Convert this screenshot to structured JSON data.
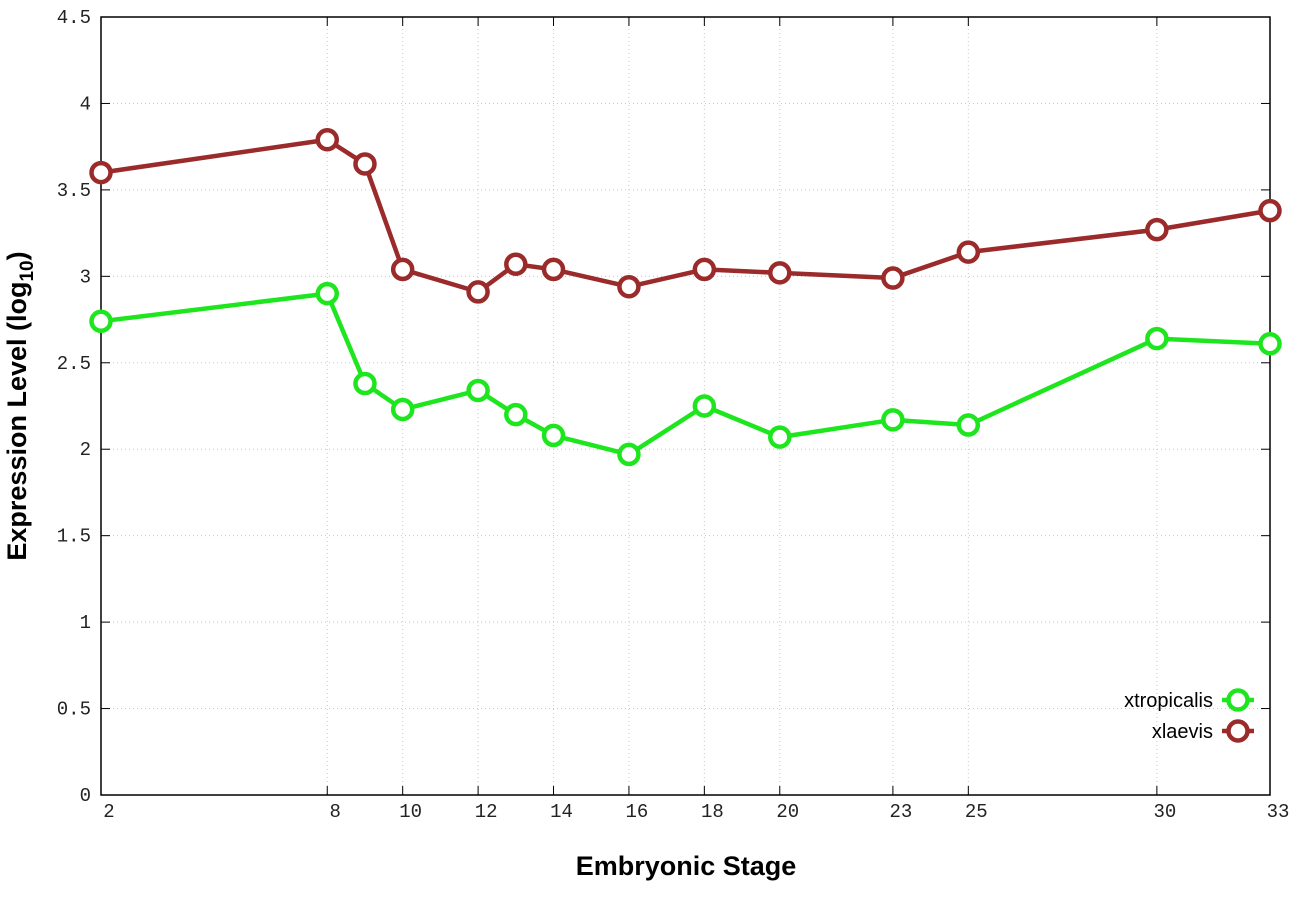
{
  "chart_data": {
    "type": "line",
    "x_label": "Embryonic Stage",
    "y_label_parts": [
      "Expression Level (log",
      "10",
      ")"
    ],
    "x": [
      2,
      8,
      9,
      10,
      12,
      13,
      14,
      16,
      18,
      20,
      23,
      25,
      30,
      33
    ],
    "series": [
      {
        "name": "xtropicalis",
        "color": "#1ee61e",
        "values": [
          2.74,
          2.9,
          2.38,
          2.23,
          2.34,
          2.2,
          2.08,
          1.97,
          2.25,
          2.07,
          2.17,
          2.14,
          2.64,
          2.61
        ]
      },
      {
        "name": "xlaevis",
        "color": "#9b2a2a",
        "values": [
          3.6,
          3.79,
          3.65,
          3.04,
          2.91,
          3.07,
          3.04,
          2.94,
          3.04,
          3.02,
          2.99,
          3.14,
          3.27,
          3.38
        ]
      }
    ],
    "xlim": [
      2,
      33
    ],
    "xticks": [
      2,
      8,
      10,
      12,
      14,
      16,
      18,
      20,
      23,
      25,
      30,
      33
    ],
    "ylim": [
      0,
      4.5
    ],
    "yticks": [
      0,
      0.5,
      1,
      1.5,
      2,
      2.5,
      3,
      3.5,
      4,
      4.5
    ],
    "grid": true,
    "legend": "bottom-right"
  }
}
